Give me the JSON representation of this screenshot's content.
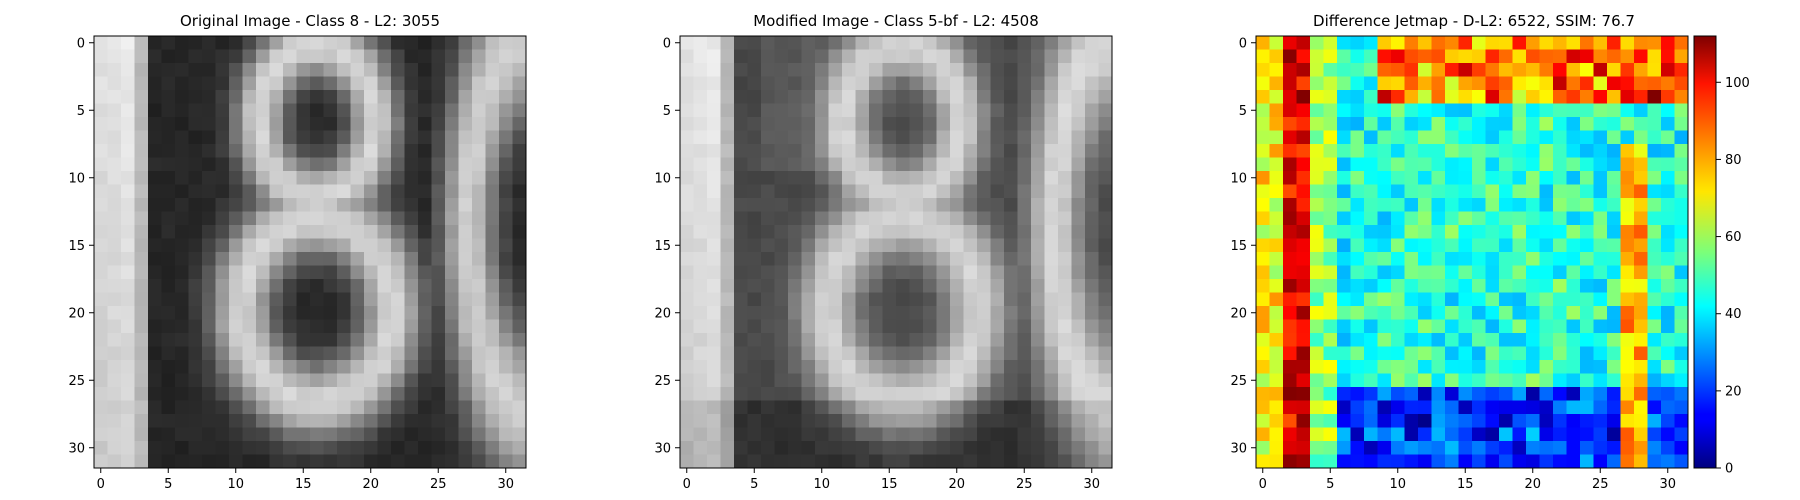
{
  "figure": {
    "colors": {
      "title_highlight": "#ff0000",
      "title_default": "#000000"
    }
  },
  "chart_data": [
    {
      "type": "heatmap",
      "title": "Original Image - Class 8 - L2: 3055",
      "title_color": "#ff0000",
      "colormap": "gray",
      "image_size": [
        32,
        32
      ],
      "xlim": [
        0,
        31
      ],
      "ylim": [
        0,
        31
      ],
      "x_ticks": [
        "0",
        "5",
        "10",
        "15",
        "20",
        "25",
        "30"
      ],
      "y_ticks": [
        "0",
        "5",
        "10",
        "15",
        "20",
        "25",
        "30"
      ]
    },
    {
      "type": "heatmap",
      "title": "Modified Image - Class 5-bf - L2: 4508",
      "title_color": "#000000",
      "colormap": "gray",
      "image_size": [
        32,
        32
      ],
      "xlim": [
        0,
        31
      ],
      "ylim": [
        0,
        31
      ],
      "x_ticks": [
        "0",
        "5",
        "10",
        "15",
        "20",
        "25",
        "30"
      ],
      "y_ticks": [
        "0",
        "5",
        "10",
        "15",
        "20",
        "25",
        "30"
      ]
    },
    {
      "type": "heatmap",
      "title": "Difference Jetmap - D-L2: 6522, SSIM: 76.7",
      "title_color": "#000000",
      "colormap": "jet",
      "image_size": [
        32,
        32
      ],
      "xlim": [
        0,
        31
      ],
      "ylim": [
        0,
        31
      ],
      "x_ticks": [
        "0",
        "5",
        "10",
        "15",
        "20",
        "25",
        "30"
      ],
      "y_ticks": [
        "0",
        "5",
        "10",
        "15",
        "20",
        "25",
        "30"
      ],
      "colorbar": {
        "range": [
          0,
          112
        ],
        "ticks": [
          "0",
          "20",
          "40",
          "60",
          "80",
          "100"
        ]
      }
    }
  ]
}
